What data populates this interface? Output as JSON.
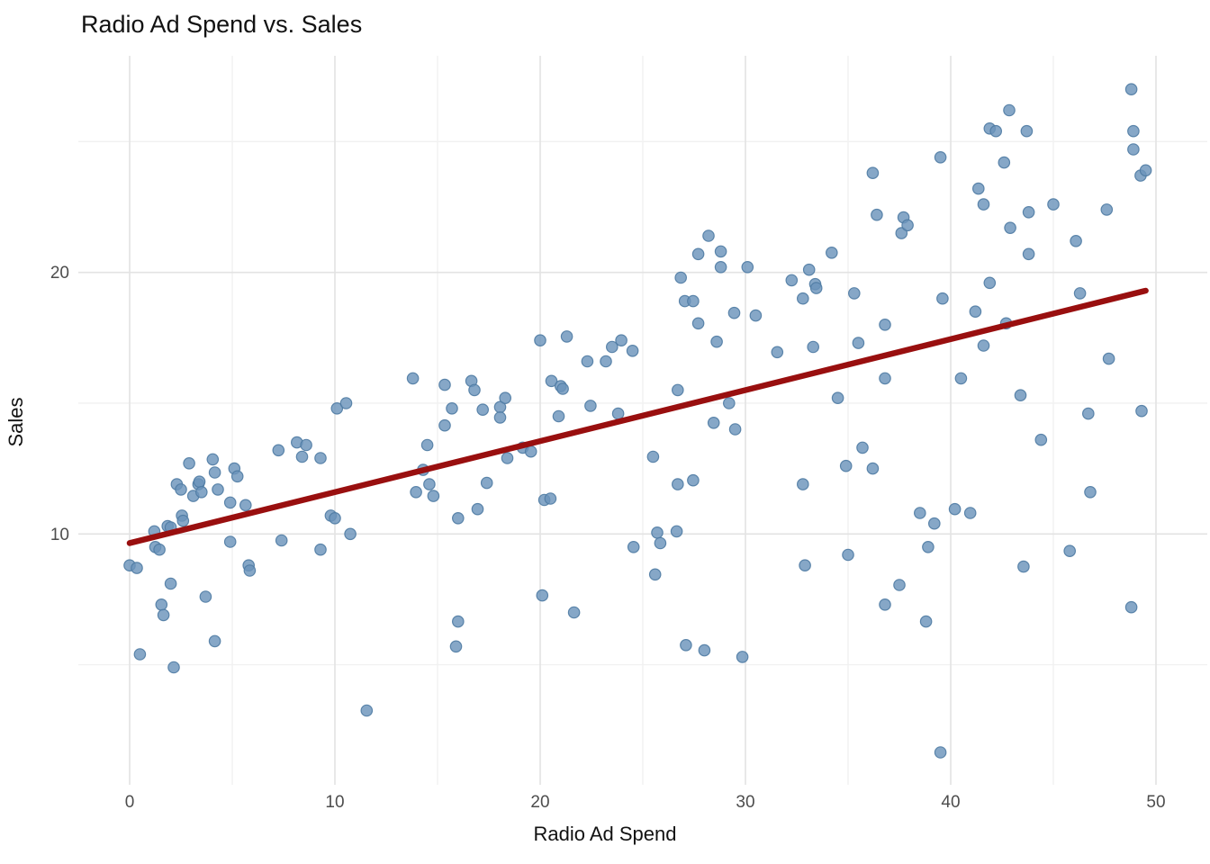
{
  "title": "Radio Ad Spend vs. Sales",
  "chart_data": {
    "type": "scatter",
    "title": "Radio Ad Spend vs. Sales",
    "xlabel": "Radio Ad Spend",
    "ylabel": "Sales",
    "x_ticks": [
      0,
      10,
      20,
      30,
      40,
      50
    ],
    "y_ticks": [
      10,
      20
    ],
    "x_minor_ticks": [
      5,
      15,
      25,
      35,
      45
    ],
    "y_minor_ticks": [
      5,
      15,
      25
    ],
    "x_domain": [
      -2.5,
      52.5
    ],
    "y_domain": [
      0.41,
      28.28
    ],
    "grid": true,
    "legend_position": "none",
    "background_color": "#ffffff",
    "major_grid_color": "#e3e3e3",
    "minor_grid_color": "#f1f1f1",
    "point_color": "#6b94bb",
    "point_edge_color": "#4f7ba3",
    "trend_color": "#990f0f",
    "trend_line": {
      "x0": 0.0,
      "y0": 9.65,
      "x1": 49.5,
      "y1": 19.3
    },
    "points": [
      [
        0,
        8.8
      ],
      [
        0.35,
        8.7
      ],
      [
        0.5,
        5.4
      ],
      [
        1.2,
        10.1
      ],
      [
        1.25,
        9.5
      ],
      [
        1.45,
        9.4
      ],
      [
        1.55,
        7.3
      ],
      [
        1.65,
        6.9
      ],
      [
        1.85,
        10.3
      ],
      [
        2.0,
        10.25
      ],
      [
        2.0,
        8.1
      ],
      [
        2.15,
        4.9
      ],
      [
        2.3,
        11.9
      ],
      [
        2.5,
        11.7
      ],
      [
        2.55,
        10.7
      ],
      [
        2.6,
        10.5
      ],
      [
        2.9,
        12.7
      ],
      [
        3.1,
        11.45
      ],
      [
        3.35,
        11.9
      ],
      [
        3.4,
        12.0
      ],
      [
        3.5,
        11.6
      ],
      [
        3.7,
        7.6
      ],
      [
        4.05,
        12.85
      ],
      [
        4.15,
        12.35
      ],
      [
        4.15,
        5.9
      ],
      [
        4.3,
        11.7
      ],
      [
        4.9,
        11.2
      ],
      [
        4.9,
        9.7
      ],
      [
        5.1,
        12.5
      ],
      [
        5.25,
        12.2
      ],
      [
        5.65,
        11.1
      ],
      [
        5.8,
        8.8
      ],
      [
        5.85,
        8.6
      ],
      [
        7.25,
        13.2
      ],
      [
        7.4,
        9.75
      ],
      [
        8.15,
        13.5
      ],
      [
        8.6,
        13.4
      ],
      [
        8.4,
        12.95
      ],
      [
        9.3,
        12.9
      ],
      [
        9.3,
        9.4
      ],
      [
        9.8,
        10.7
      ],
      [
        10.0,
        10.6
      ],
      [
        10.1,
        14.8
      ],
      [
        10.55,
        15.0
      ],
      [
        10.75,
        10.0
      ],
      [
        11.55,
        3.25
      ],
      [
        13.8,
        15.95
      ],
      [
        13.95,
        11.6
      ],
      [
        14.3,
        12.45
      ],
      [
        14.5,
        13.4
      ],
      [
        14.6,
        11.9
      ],
      [
        14.8,
        11.45
      ],
      [
        15.35,
        15.7
      ],
      [
        15.35,
        14.15
      ],
      [
        15.7,
        14.8
      ],
      [
        16.0,
        10.6
      ],
      [
        16.0,
        6.65
      ],
      [
        15.9,
        5.7
      ],
      [
        16.65,
        15.85
      ],
      [
        16.8,
        15.5
      ],
      [
        16.95,
        10.95
      ],
      [
        17.2,
        14.75
      ],
      [
        17.4,
        11.95
      ],
      [
        18.05,
        14.85
      ],
      [
        18.05,
        14.45
      ],
      [
        18.3,
        15.2
      ],
      [
        18.4,
        12.9
      ],
      [
        19.15,
        13.3
      ],
      [
        19.55,
        13.15
      ],
      [
        20.0,
        17.4
      ],
      [
        20.1,
        7.65
      ],
      [
        20.2,
        11.3
      ],
      [
        20.5,
        11.35
      ],
      [
        20.55,
        15.85
      ],
      [
        20.9,
        14.5
      ],
      [
        21.0,
        15.65
      ],
      [
        21.1,
        15.55
      ],
      [
        21.3,
        17.55
      ],
      [
        21.65,
        7.0
      ],
      [
        22.3,
        16.6
      ],
      [
        22.45,
        14.9
      ],
      [
        23.2,
        16.6
      ],
      [
        23.5,
        17.15
      ],
      [
        23.8,
        14.6
      ],
      [
        23.95,
        17.4
      ],
      [
        24.5,
        17.0
      ],
      [
        24.55,
        9.5
      ],
      [
        25.5,
        12.95
      ],
      [
        25.6,
        8.45
      ],
      [
        25.7,
        10.05
      ],
      [
        25.85,
        9.65
      ],
      [
        26.65,
        10.1
      ],
      [
        26.7,
        15.5
      ],
      [
        26.7,
        11.9
      ],
      [
        26.85,
        19.8
      ],
      [
        27.05,
        18.9
      ],
      [
        27.45,
        18.9
      ],
      [
        27.45,
        12.05
      ],
      [
        27.1,
        5.75
      ],
      [
        27.7,
        20.7
      ],
      [
        27.7,
        18.05
      ],
      [
        28.0,
        5.55
      ],
      [
        28.2,
        21.4
      ],
      [
        28.45,
        14.25
      ],
      [
        28.6,
        17.35
      ],
      [
        28.8,
        20.8
      ],
      [
        28.8,
        20.2
      ],
      [
        29.2,
        15.0
      ],
      [
        29.45,
        18.45
      ],
      [
        29.5,
        14.0
      ],
      [
        29.85,
        5.3
      ],
      [
        30.1,
        20.2
      ],
      [
        30.5,
        18.35
      ],
      [
        31.55,
        16.95
      ],
      [
        32.25,
        19.7
      ],
      [
        32.8,
        19.0
      ],
      [
        32.8,
        11.9
      ],
      [
        32.9,
        8.8
      ],
      [
        33.1,
        20.1
      ],
      [
        33.3,
        17.15
      ],
      [
        33.4,
        19.55
      ],
      [
        33.45,
        19.4
      ],
      [
        34.2,
        20.75
      ],
      [
        34.5,
        15.2
      ],
      [
        34.9,
        12.6
      ],
      [
        35.0,
        9.2
      ],
      [
        35.3,
        19.2
      ],
      [
        35.5,
        17.3
      ],
      [
        35.7,
        13.3
      ],
      [
        36.2,
        23.8
      ],
      [
        36.2,
        12.5
      ],
      [
        36.4,
        22.2
      ],
      [
        36.8,
        18.0
      ],
      [
        36.8,
        15.95
      ],
      [
        36.8,
        7.3
      ],
      [
        37.5,
        8.05
      ],
      [
        37.6,
        21.5
      ],
      [
        37.7,
        22.1
      ],
      [
        37.9,
        21.8
      ],
      [
        38.5,
        10.8
      ],
      [
        38.8,
        6.65
      ],
      [
        38.9,
        9.5
      ],
      [
        39.2,
        10.4
      ],
      [
        39.5,
        24.4
      ],
      [
        39.5,
        1.65
      ],
      [
        39.6,
        19.0
      ],
      [
        40.2,
        10.95
      ],
      [
        40.5,
        15.95
      ],
      [
        40.95,
        10.8
      ],
      [
        41.2,
        18.5
      ],
      [
        41.35,
        23.2
      ],
      [
        41.6,
        22.6
      ],
      [
        41.6,
        17.2
      ],
      [
        41.9,
        25.5
      ],
      [
        41.9,
        19.6
      ],
      [
        42.2,
        25.4
      ],
      [
        42.6,
        24.2
      ],
      [
        42.7,
        18.05
      ],
      [
        42.85,
        26.2
      ],
      [
        42.9,
        21.7
      ],
      [
        43.4,
        15.3
      ],
      [
        43.55,
        8.75
      ],
      [
        43.7,
        25.4
      ],
      [
        43.8,
        22.3
      ],
      [
        43.8,
        20.7
      ],
      [
        44.4,
        13.6
      ],
      [
        45.0,
        22.6
      ],
      [
        45.8,
        9.35
      ],
      [
        46.1,
        21.2
      ],
      [
        46.3,
        19.2
      ],
      [
        46.7,
        14.6
      ],
      [
        46.8,
        11.6
      ],
      [
        47.6,
        22.4
      ],
      [
        47.7,
        16.7
      ],
      [
        48.8,
        27.0
      ],
      [
        48.8,
        7.2
      ],
      [
        48.9,
        25.4
      ],
      [
        48.9,
        24.7
      ],
      [
        49.25,
        23.7
      ],
      [
        49.5,
        23.9
      ],
      [
        49.3,
        14.7
      ]
    ]
  }
}
